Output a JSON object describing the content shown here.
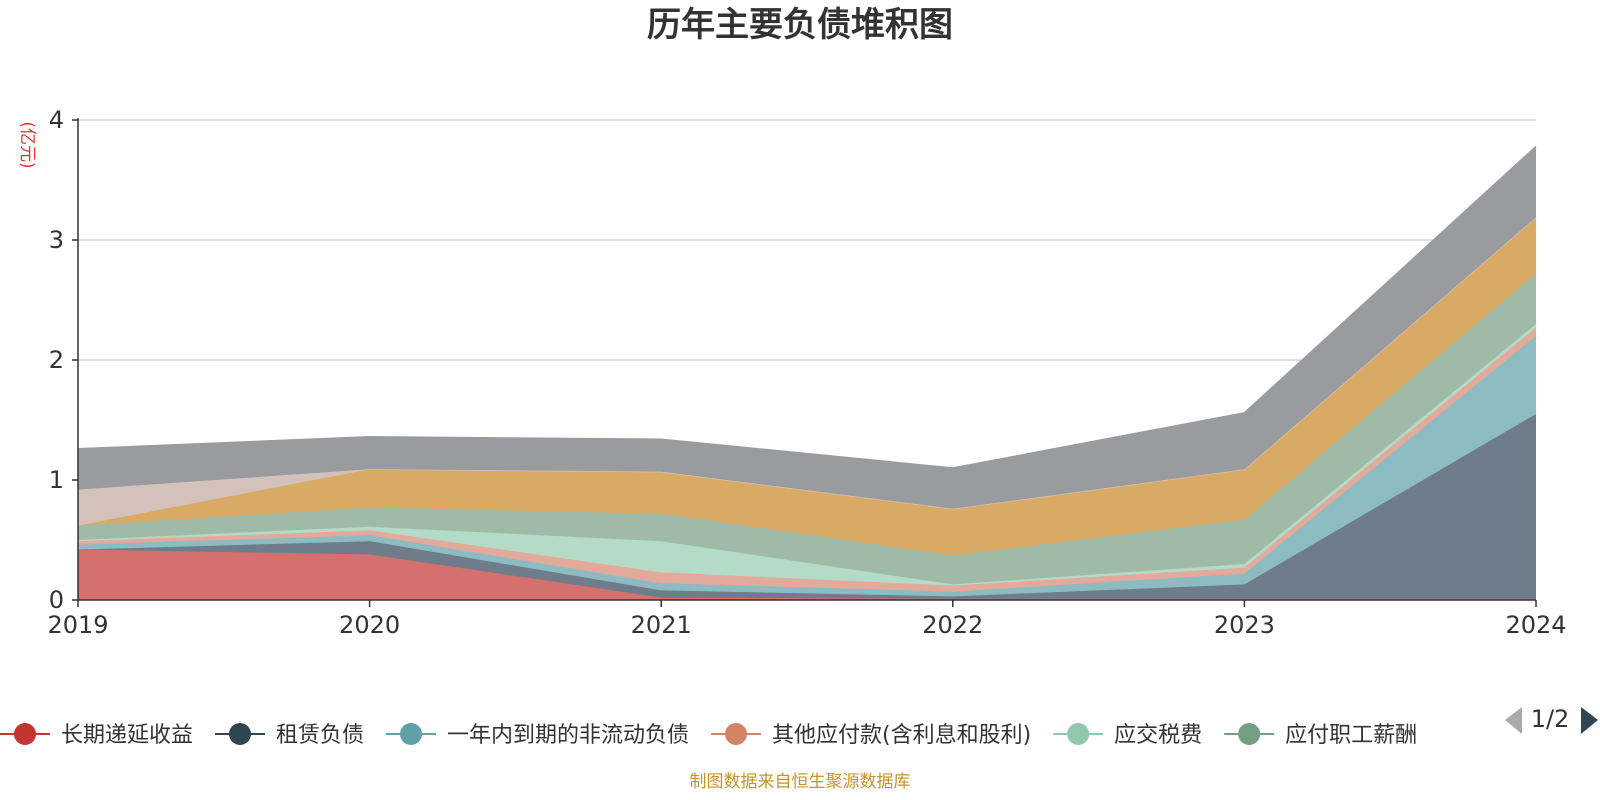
{
  "chart_data": {
    "type": "area",
    "stacked": true,
    "title": "历年主要负债堆积图",
    "ylabel": "(亿元)",
    "categories": [
      "2019",
      "2020",
      "2021",
      "2022",
      "2023",
      "2024"
    ],
    "ylim": [
      0,
      4
    ],
    "yticks": [
      "0",
      "1",
      "2",
      "3",
      "4"
    ],
    "grid": true,
    "series": [
      {
        "name": "长期递延收益",
        "color": "#c23531",
        "fill": "#d4706e",
        "legend": true,
        "values": [
          0.42,
          0.38,
          0.02,
          0.01,
          0.01,
          0.01
        ]
      },
      {
        "name": "租赁负债",
        "color": "#2f4554",
        "fill": "#6e7d89",
        "legend": true,
        "values": [
          0.0,
          0.11,
          0.06,
          0.02,
          0.12,
          1.54
        ]
      },
      {
        "name": "一年内到期的非流动负债",
        "color": "#61a0a8",
        "fill": "#8dbbc2",
        "legend": true,
        "values": [
          0.04,
          0.05,
          0.06,
          0.04,
          0.09,
          0.65
        ]
      },
      {
        "name": "其他应付款(含利息和股利)",
        "color": "#d48265",
        "fill": "#e3a99a",
        "legend": true,
        "values": [
          0.03,
          0.04,
          0.09,
          0.05,
          0.05,
          0.07
        ]
      },
      {
        "name": "应交税费",
        "color": "#91c7ae",
        "fill": "#b3dbc8",
        "legend": true,
        "values": [
          0.01,
          0.03,
          0.26,
          0.01,
          0.03,
          0.03
        ]
      },
      {
        "name": "应付职工薪酬",
        "color": "#749f83",
        "fill": "#9fbba7",
        "legend": true,
        "values": [
          0.12,
          0.16,
          0.23,
          0.24,
          0.37,
          0.42
        ]
      },
      {
        "name": "",
        "color": "#ca8622",
        "fill": "#d9aa63",
        "legend": false,
        "values": [
          0.0,
          0.32,
          0.35,
          0.39,
          0.42,
          0.47
        ]
      },
      {
        "name": "",
        "color": "#bda29a",
        "fill": "#d3c1bc",
        "legend": false,
        "values": [
          0.3,
          0.0,
          0.0,
          0.0,
          0.0,
          0.0
        ]
      },
      {
        "name": "",
        "color": "#6e7074",
        "fill": "#9a9b9f",
        "legend": false,
        "values": [
          0.34,
          0.27,
          0.27,
          0.34,
          0.47,
          0.59
        ]
      }
    ],
    "legend": {
      "position": "bottom",
      "page_label": "1/2",
      "truncated_last": "应付职工薪酬"
    }
  },
  "footer": {
    "source": "制图数据来自恒生聚源数据库"
  }
}
